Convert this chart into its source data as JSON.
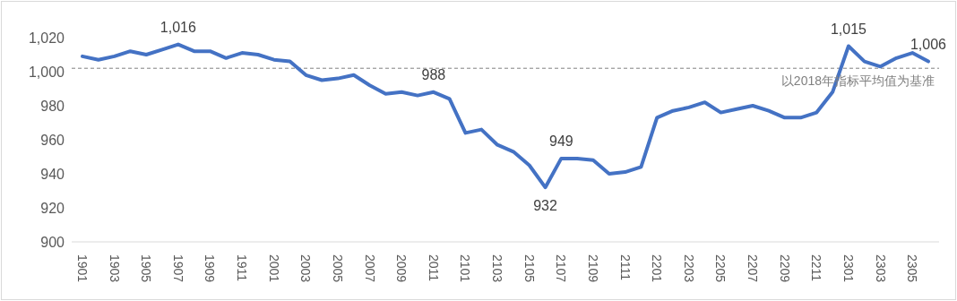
{
  "chart_data": {
    "type": "line",
    "categories": [
      "1901",
      null,
      "1903",
      null,
      "1905",
      null,
      "1907",
      null,
      "1909",
      null,
      "1911",
      null,
      "2001",
      null,
      "2003",
      null,
      "2005",
      null,
      "2007",
      null,
      "2009",
      null,
      "2011",
      null,
      "2101",
      null,
      "2103",
      null,
      "2105",
      null,
      "2107",
      null,
      "2109",
      null,
      "2111",
      null,
      "2201",
      null,
      "2203",
      null,
      "2205",
      null,
      "2207",
      null,
      "2209",
      null,
      "2211",
      null,
      "2301",
      null,
      "2303",
      null,
      "2305",
      null
    ],
    "series": [
      {
        "color": "#4472c4",
        "values": [
          1009,
          1007,
          1009,
          1012,
          1010,
          1013,
          1016,
          1012,
          1012,
          1008,
          1011,
          1010,
          1007,
          1006,
          998,
          995,
          996,
          998,
          992,
          987,
          988,
          986,
          988,
          984,
          964,
          966,
          957,
          953,
          945,
          932,
          949,
          949,
          948,
          940,
          941,
          944,
          973,
          977,
          979,
          982,
          976,
          978,
          980,
          977,
          973,
          973,
          976,
          988,
          1015,
          1006,
          1003,
          1008,
          1011,
          1006
        ],
        "value_labels": [
          null,
          null,
          null,
          null,
          null,
          null,
          "1,016",
          null,
          null,
          null,
          null,
          null,
          null,
          null,
          null,
          null,
          null,
          null,
          null,
          null,
          null,
          null,
          "988",
          null,
          null,
          null,
          null,
          null,
          null,
          "932",
          "949",
          null,
          null,
          null,
          null,
          null,
          null,
          null,
          null,
          null,
          null,
          null,
          null,
          null,
          null,
          null,
          null,
          null,
          "1,015",
          null,
          null,
          null,
          null,
          "1,006"
        ]
      }
    ],
    "ylim": [
      900,
      1020
    ],
    "yticks": [
      900,
      920,
      940,
      960,
      980,
      {
        "value": 1000,
        "label": "1,000"
      },
      {
        "value": 1020,
        "label": "1,020"
      }
    ],
    "ref_lines": [
      {
        "axis": "y",
        "value": 1002,
        "label": "以2018年指标平均值为基准",
        "color": "#808080",
        "line_style": "dashed"
      }
    ],
    "grid": false,
    "legend": false,
    "marker": "none",
    "line_style": "solid"
  }
}
